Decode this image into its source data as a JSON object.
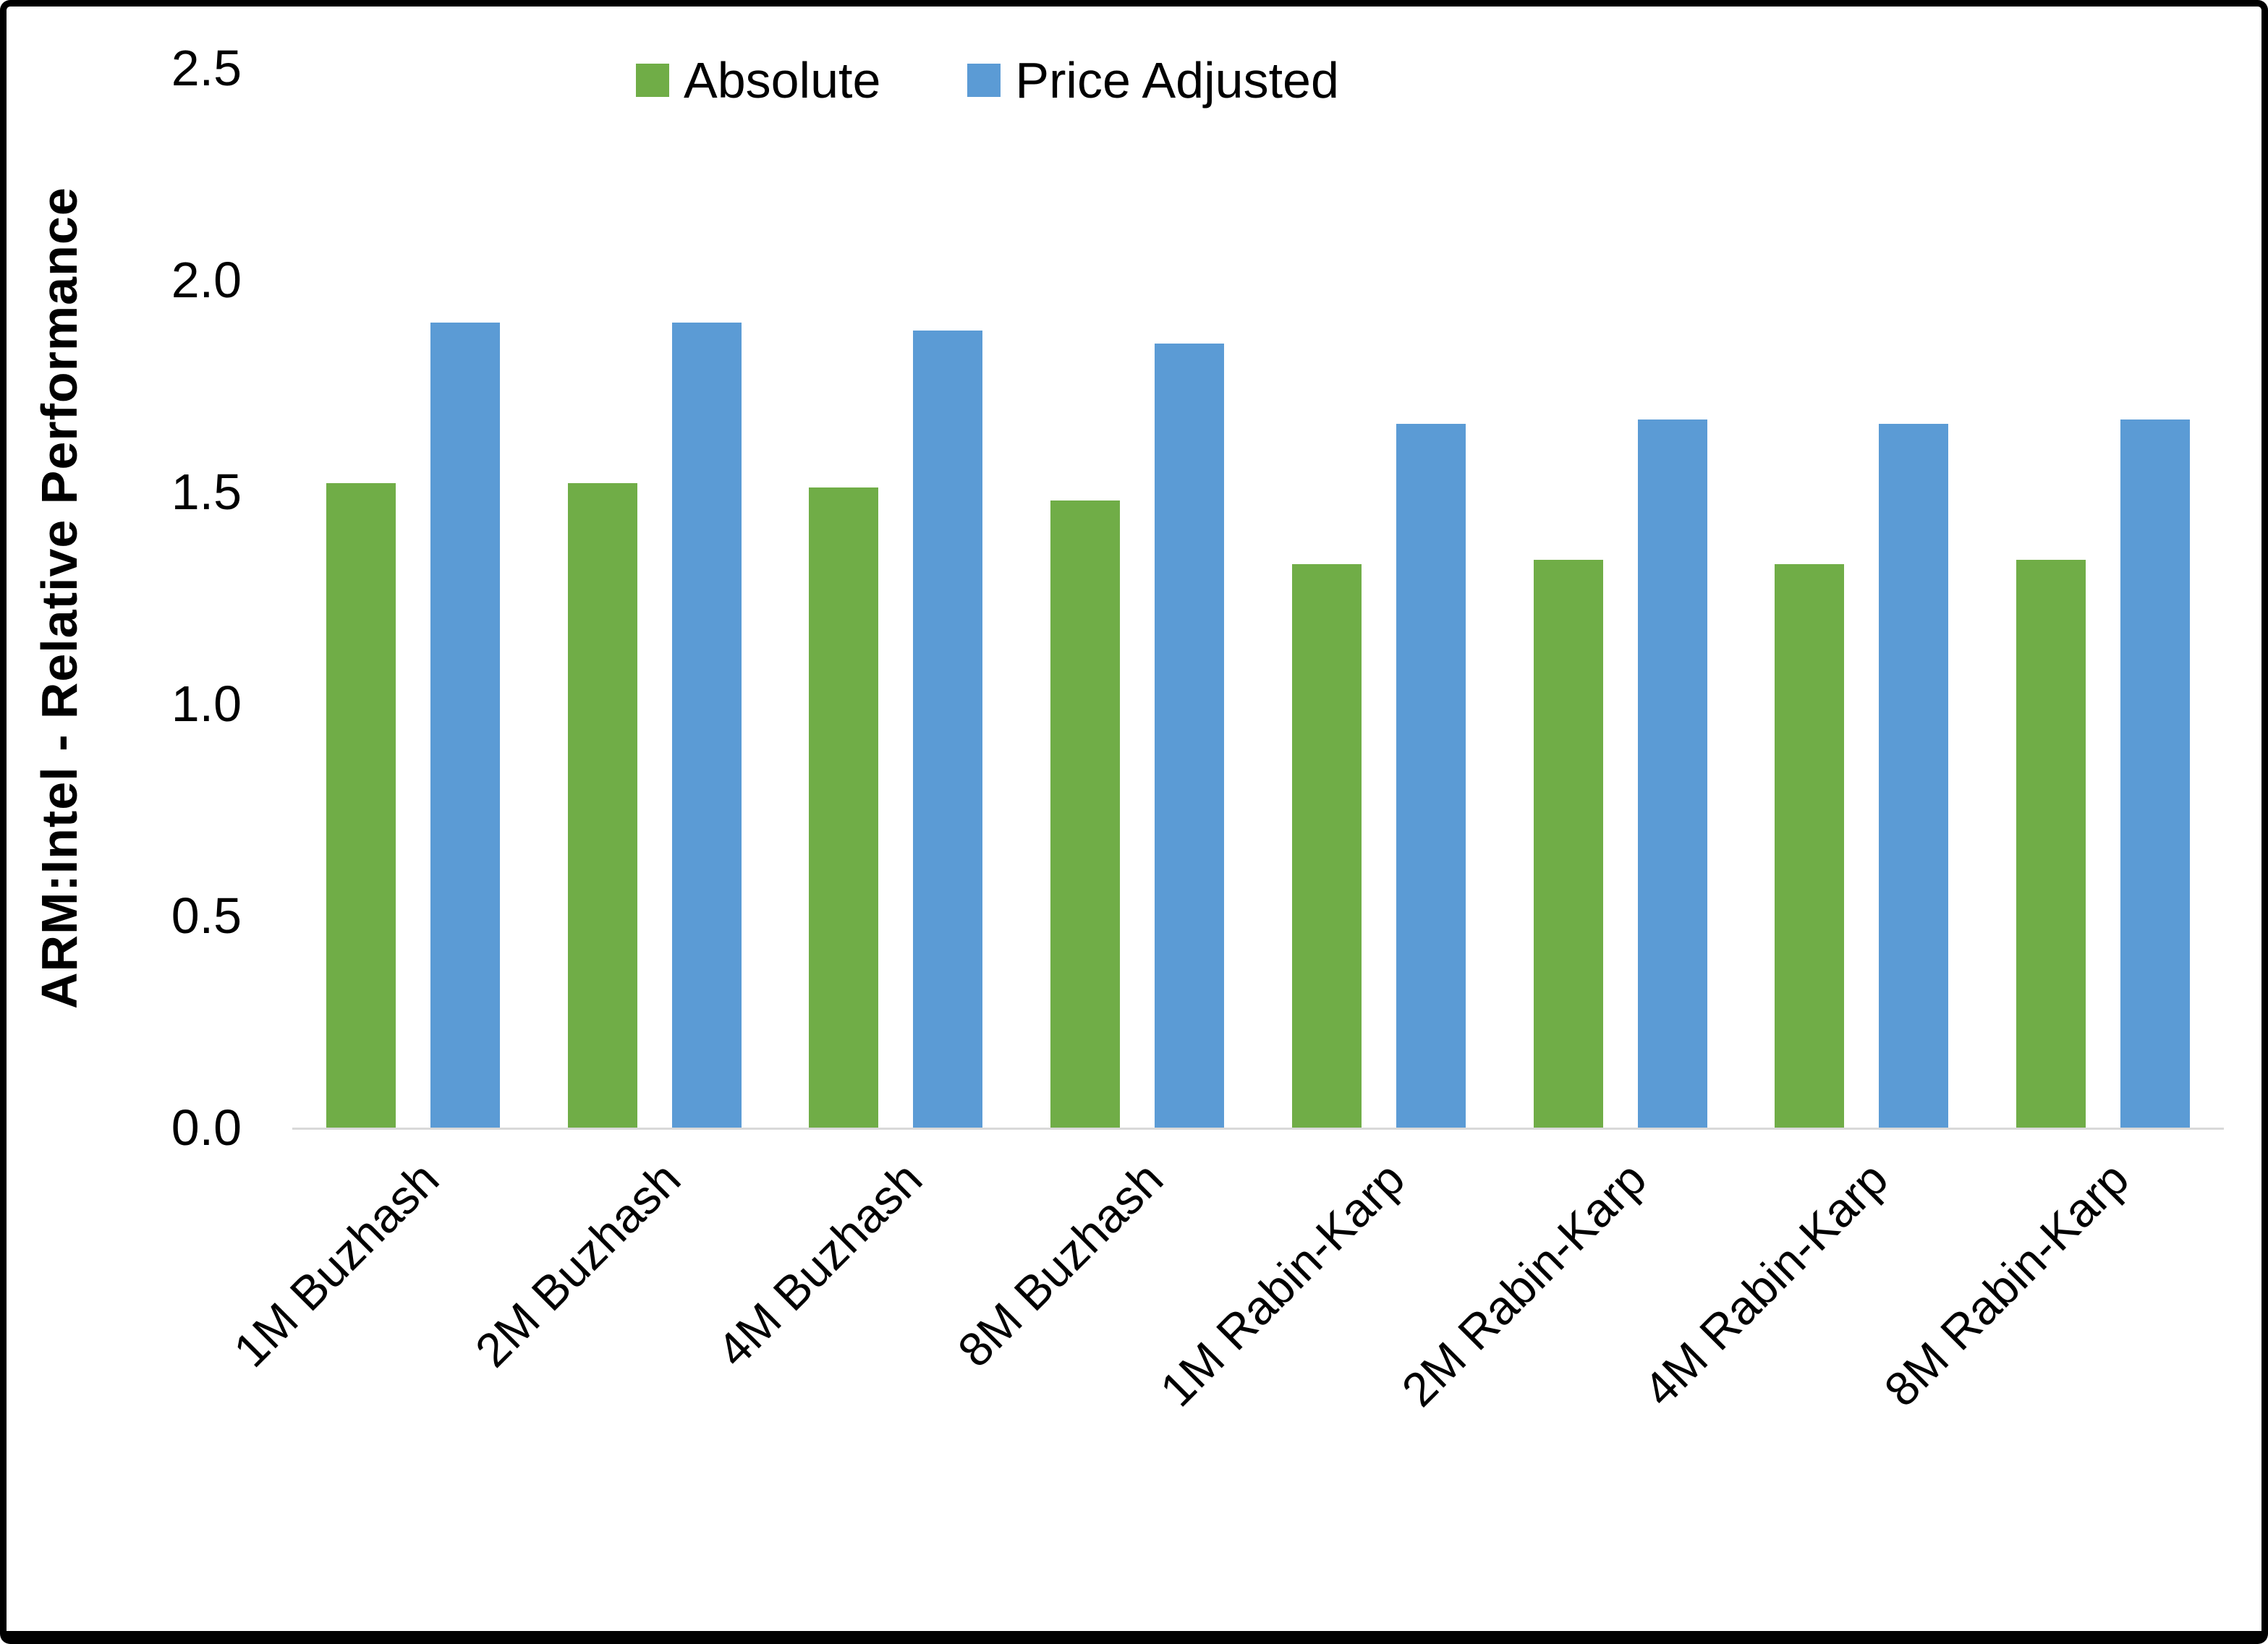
{
  "figure": {
    "background": "#ffffff",
    "frame_color": "#000000",
    "axis_line_color": "#d9d9d9"
  },
  "chart_data": {
    "type": "bar",
    "title": "",
    "xlabel": "",
    "ylabel": "ARM:Intel - Relative Performance",
    "ylim": [
      0,
      2.5
    ],
    "ytick_labels": [
      "0.0",
      "0.5",
      "1.0",
      "1.5",
      "2.0",
      "2.5"
    ],
    "grid": false,
    "legend_position": "top",
    "categories": [
      "1M Buzhash",
      "2M Buzhash",
      "4M Buzhash",
      "8M Buzhash",
      "1M Rabin-Karp",
      "2M Rabin-Karp",
      "4M Rabin-Karp",
      "8M Rabin-Karp"
    ],
    "series": [
      {
        "name": "Absolute",
        "color": "#70AD47",
        "values": [
          1.52,
          1.52,
          1.51,
          1.48,
          1.33,
          1.34,
          1.33,
          1.34
        ]
      },
      {
        "name": "Price Adjusted",
        "color": "#5B9BD5",
        "values": [
          1.9,
          1.9,
          1.88,
          1.85,
          1.66,
          1.67,
          1.66,
          1.67
        ]
      }
    ]
  }
}
